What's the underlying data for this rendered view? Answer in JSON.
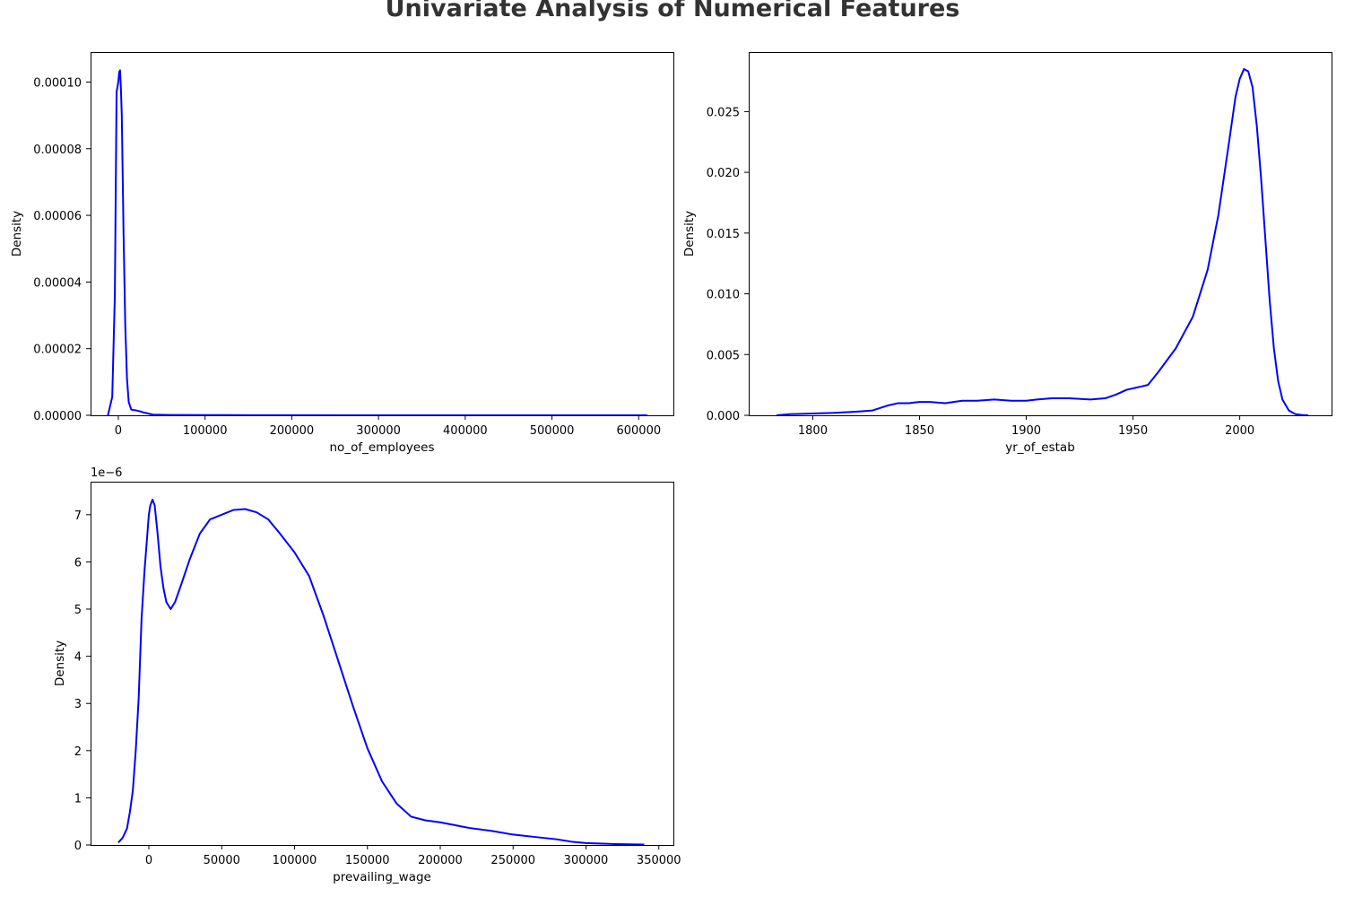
{
  "figure": {
    "title": "Univariate Analysis of Numerical Features"
  },
  "chart_data": [
    {
      "type": "line",
      "kind": "kde",
      "color": "#0000ff",
      "xlabel": "no_of_employees",
      "ylabel": "Density",
      "offset_text": "",
      "xlim": [
        -32000,
        640000
      ],
      "ylim": [
        0,
        0.000109
      ],
      "xticks": [
        0,
        100000,
        200000,
        300000,
        400000,
        500000,
        600000
      ],
      "xtick_labels": [
        "0",
        "100000",
        "200000",
        "300000",
        "400000",
        "500000",
        "600000"
      ],
      "yticks": [
        0,
        2e-05,
        4e-05,
        6e-05,
        8e-05,
        0.0001
      ],
      "ytick_labels": [
        "0.00000",
        "0.00002",
        "0.00004",
        "0.00006",
        "0.00008",
        "0.00010"
      ],
      "x": [
        -12000,
        -7000,
        -4000,
        -2000,
        0,
        1000,
        2000,
        3000,
        4000,
        6000,
        8000,
        10000,
        12000,
        15000,
        20000,
        25000,
        30000,
        40000,
        60000,
        100000,
        150000,
        200000,
        300000,
        400000,
        500000,
        610000
      ],
      "y": [
        0,
        5.5e-06,
        3.6e-05,
        9.7e-05,
        0.0001,
        0.000103,
        0.0001035,
        9.8e-05,
        9e-05,
        5.5e-05,
        2.7e-05,
        1.1e-05,
        4e-06,
        1.7e-06,
        1.5e-06,
        1.2e-06,
        8e-07,
        2e-07,
        1e-07,
        8e-08,
        4e-08,
        2e-08,
        1e-08,
        5e-09,
        3e-09,
        2e-09
      ]
    },
    {
      "type": "line",
      "kind": "kde",
      "color": "#0000ff",
      "xlabel": "yr_of_estab",
      "ylabel": "Density",
      "offset_text": "",
      "xlim": [
        1770,
        2043
      ],
      "ylim": [
        0,
        0.0299
      ],
      "xticks": [
        1800,
        1850,
        1900,
        1950,
        2000
      ],
      "xtick_labels": [
        "1800",
        "1850",
        "1900",
        "1950",
        "2000"
      ],
      "yticks": [
        0,
        0.005,
        0.01,
        0.015,
        0.02,
        0.025
      ],
      "ytick_labels": [
        "0.000",
        "0.005",
        "0.010",
        "0.015",
        "0.020",
        "0.025"
      ],
      "x": [
        1783,
        1790,
        1800,
        1810,
        1820,
        1828,
        1835,
        1840,
        1845,
        1850,
        1855,
        1862,
        1870,
        1877,
        1885,
        1893,
        1900,
        1905,
        1912,
        1920,
        1930,
        1937,
        1942,
        1947,
        1952,
        1957,
        1962,
        1970,
        1978,
        1985,
        1990,
        1995,
        1998,
        2000,
        2002,
        2004,
        2006,
        2008,
        2010,
        2012,
        2014,
        2016,
        2018,
        2020,
        2023,
        2026,
        2029,
        2032
      ],
      "y": [
        0,
        0.0001,
        0.00015,
        0.0002,
        0.0003,
        0.0004,
        0.0008,
        0.001,
        0.001,
        0.0011,
        0.0011,
        0.001,
        0.0012,
        0.0012,
        0.0013,
        0.0012,
        0.0012,
        0.0013,
        0.0014,
        0.0014,
        0.0013,
        0.0014,
        0.0017,
        0.0021,
        0.0023,
        0.0025,
        0.0036,
        0.0055,
        0.0081,
        0.012,
        0.0165,
        0.0225,
        0.0262,
        0.0277,
        0.0285,
        0.0283,
        0.027,
        0.0238,
        0.0195,
        0.0145,
        0.0095,
        0.0055,
        0.0028,
        0.0013,
        0.0004,
        0.0001,
        3e-05,
        0
      ]
    },
    {
      "type": "line",
      "kind": "kde",
      "color": "#0000ff",
      "xlabel": "prevailing_wage",
      "ylabel": "Density",
      "offset_text": "1e−6",
      "xlim": [
        -40000,
        360000
      ],
      "ylim": [
        0,
        7.7
      ],
      "xticks": [
        0,
        50000,
        100000,
        150000,
        200000,
        250000,
        300000,
        350000
      ],
      "xtick_labels": [
        "0",
        "50000",
        "100000",
        "150000",
        "200000",
        "250000",
        "300000",
        "350000"
      ],
      "yticks": [
        0,
        1,
        2,
        3,
        4,
        5,
        6,
        7
      ],
      "ytick_labels": [
        "0",
        "1",
        "2",
        "3",
        "4",
        "5",
        "6",
        "7"
      ],
      "x": [
        -21000,
        -18000,
        -15000,
        -13000,
        -11000,
        -9000,
        -7000,
        -5000,
        -3000,
        -1000,
        0,
        1000,
        2500,
        4000,
        6000,
        8000,
        10000,
        12000,
        15000,
        18000,
        22000,
        28000,
        35000,
        42000,
        50000,
        58000,
        66000,
        74000,
        82000,
        90000,
        100000,
        110000,
        120000,
        130000,
        140000,
        150000,
        160000,
        170000,
        180000,
        190000,
        200000,
        210000,
        220000,
        235000,
        250000,
        265000,
        280000,
        290000,
        300000,
        320000,
        340000
      ],
      "y": [
        0.05,
        0.15,
        0.35,
        0.7,
        1.15,
        2.0,
        3.1,
        4.8,
        5.8,
        6.6,
        7.0,
        7.2,
        7.32,
        7.2,
        6.6,
        5.9,
        5.45,
        5.15,
        5.0,
        5.15,
        5.5,
        6.05,
        6.6,
        6.9,
        7.0,
        7.1,
        7.12,
        7.05,
        6.9,
        6.6,
        6.2,
        5.7,
        4.85,
        3.9,
        2.95,
        2.05,
        1.35,
        0.88,
        0.6,
        0.52,
        0.48,
        0.42,
        0.36,
        0.3,
        0.22,
        0.17,
        0.12,
        0.07,
        0.04,
        0.02,
        0.01
      ]
    }
  ]
}
